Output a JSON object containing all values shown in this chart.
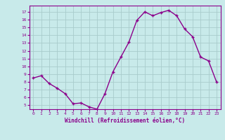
{
  "x": [
    0,
    1,
    2,
    3,
    4,
    5,
    6,
    7,
    8,
    9,
    10,
    11,
    12,
    13,
    14,
    15,
    16,
    17,
    18,
    19,
    20,
    21,
    22,
    23
  ],
  "y": [
    8.5,
    8.8,
    7.8,
    7.2,
    6.5,
    5.2,
    5.3,
    4.8,
    4.5,
    6.5,
    9.3,
    11.2,
    13.1,
    15.9,
    17.0,
    16.5,
    16.9,
    17.2,
    16.5,
    14.8,
    13.8,
    11.2,
    10.7,
    8.0
  ],
  "color": "#8B008B",
  "bg_color": "#c8eaea",
  "grid_color": "#a8cccc",
  "xlabel": "Windchill (Refroidissement éolien,°C)",
  "ylim": [
    4.5,
    17.8
  ],
  "xlim": [
    -0.5,
    23.5
  ],
  "yticks": [
    5,
    6,
    7,
    8,
    9,
    10,
    11,
    12,
    13,
    14,
    15,
    16,
    17
  ],
  "xticks": [
    0,
    1,
    2,
    3,
    4,
    5,
    6,
    7,
    8,
    9,
    10,
    11,
    12,
    13,
    14,
    15,
    16,
    17,
    18,
    19,
    20,
    21,
    22,
    23
  ],
  "line_width": 1.0,
  "marker_size": 2.5
}
